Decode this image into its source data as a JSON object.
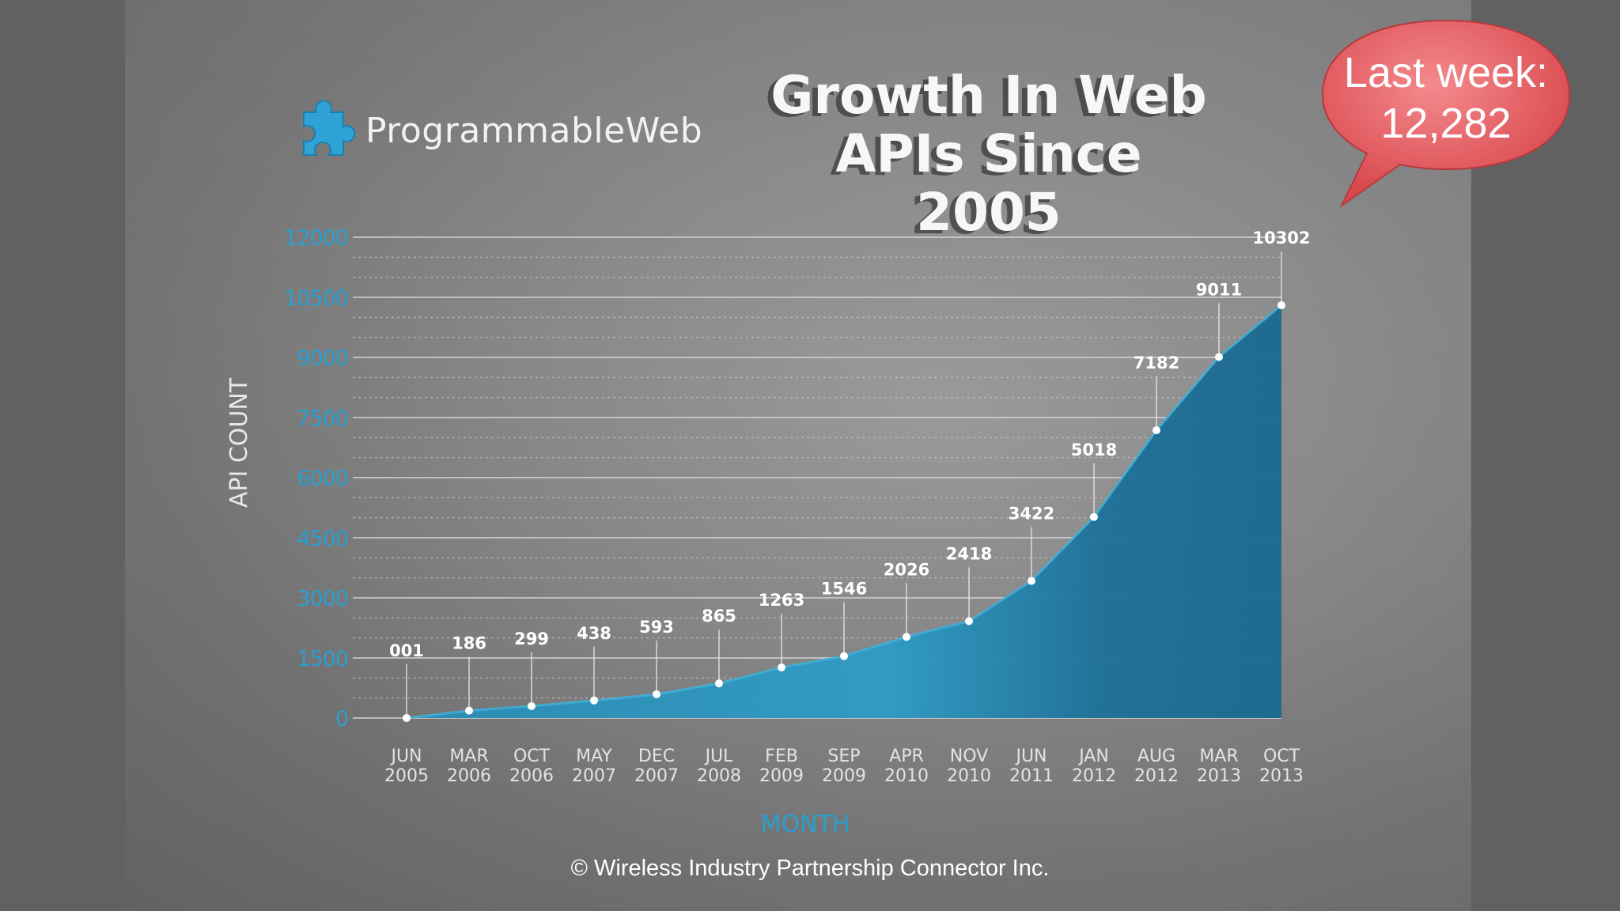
{
  "logo": {
    "name": "ProgrammableWeb",
    "icon": "puzzle-piece-icon"
  },
  "bubble": {
    "line1": "Last week:",
    "line2": "12,282",
    "color": "#e8565a"
  },
  "footer": {
    "copyright": "© Wireless Industry Partnership Connector Inc."
  },
  "chart_data": {
    "type": "area",
    "title": "Growth In Web APIs Since 2005",
    "title_lines": [
      "Growth In Web",
      "APIs Since 2005"
    ],
    "xlabel": "MONTH",
    "ylabel": "API COUNT",
    "ylim": [
      0,
      12000
    ],
    "yticks": [
      0,
      1500,
      3000,
      4500,
      6000,
      7500,
      9000,
      10500,
      12000
    ],
    "ytick_labels": [
      "0",
      "1500",
      "3000",
      "4500",
      "6000",
      "7500",
      "9000",
      "10500",
      "12000"
    ],
    "grid": true,
    "categories": [
      [
        "JUN",
        "2005"
      ],
      [
        "MAR",
        "2006"
      ],
      [
        "OCT",
        "2006"
      ],
      [
        "MAY",
        "2007"
      ],
      [
        "DEC",
        "2007"
      ],
      [
        "JUL",
        "2008"
      ],
      [
        "FEB",
        "2009"
      ],
      [
        "SEP",
        "2009"
      ],
      [
        "APR",
        "2010"
      ],
      [
        "NOV",
        "2010"
      ],
      [
        "JUN",
        "2011"
      ],
      [
        "JAN",
        "2012"
      ],
      [
        "AUG",
        "2012"
      ],
      [
        "MAR",
        "2013"
      ],
      [
        "OCT",
        "2013"
      ]
    ],
    "values": [
      1,
      186,
      299,
      438,
      593,
      865,
      1263,
      1546,
      2026,
      2418,
      3422,
      5018,
      7182,
      9011,
      10302
    ],
    "value_labels": [
      "001",
      "186",
      "299",
      "438",
      "593",
      "865",
      "1263",
      "1546",
      "2026",
      "2418",
      "3422",
      "5018",
      "7182",
      "9011",
      "10302"
    ],
    "colors": {
      "area": "#1f7fa6",
      "area_light": "#36a7cf",
      "axis_text": "#2a9fd0",
      "label": "#ffffff",
      "grid": "#cfcfcf"
    }
  }
}
